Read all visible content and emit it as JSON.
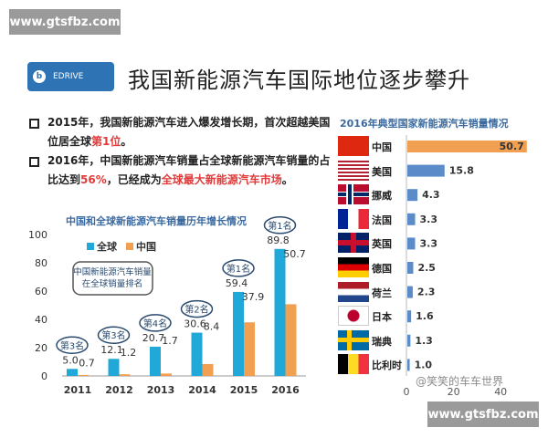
{
  "watermark_top": "www.gtsfbz.com",
  "watermark_bottom": "www.gtsfbz.com",
  "logo": {
    "text": "EDRIVE"
  },
  "title": "我国新能源汽车国际地位逐步攀升",
  "bullets": [
    {
      "pre": "2015年，我国新能源汽车进入爆发增长期，首次超越美国位居全球",
      "hl": "第1位",
      "post": "。"
    },
    {
      "pre": "2016年，中国新能源汽车销量占全球新能源汽车销量的占比达到",
      "hl": "56%",
      "mid": "，已经成为",
      "hl2": "全球最大新能源汽车市场",
      "post": "。"
    }
  ],
  "social_watermark": "@笑笑的车车世界",
  "chart_data": [
    {
      "type": "bar",
      "title": "中国和全球新能源汽车销量历年增长情况",
      "categories": [
        "2011",
        "2012",
        "2013",
        "2014",
        "2015",
        "2016"
      ],
      "series": [
        {
          "name": "全球",
          "values": [
            5.0,
            12.1,
            20.7,
            30.6,
            59.4,
            89.8
          ],
          "color": "#1fa8d8"
        },
        {
          "name": "中国",
          "values": [
            0.7,
            1.2,
            1.7,
            8.4,
            37.9,
            50.7
          ],
          "color": "#f0a050"
        }
      ],
      "rank_labels": [
        "第3名",
        "第3名",
        "第4名",
        "第2名",
        "第1名",
        "第1名"
      ],
      "annotation": "中国新能源汽车销量\n在全球销量排名",
      "annotation_lines": [
        "中国新能源汽车销量",
        "在全球销量排名"
      ],
      "yticks": [
        "0",
        "20",
        "40",
        "60",
        "80",
        "100"
      ],
      "ylim": [
        0,
        100
      ],
      "legend": "top-left"
    },
    {
      "type": "bar",
      "orientation": "horizontal",
      "title": "2016年典型国家新能源汽车销量情况",
      "categories": [
        "中国",
        "美国",
        "挪威",
        "法国",
        "英国",
        "德国",
        "荷兰",
        "日本",
        "瑞典",
        "比利时"
      ],
      "values": [
        50.7,
        15.8,
        4.3,
        3.3,
        3.3,
        2.5,
        2.3,
        1.6,
        1.3,
        1.0
      ],
      "value_labels": [
        "50.7",
        "15.8",
        "4.3",
        "3.3",
        "3.3",
        "2.5",
        "2.3",
        "1.6",
        "1.3",
        "1.0"
      ],
      "colors": {
        "highlight": "#f0a050",
        "default": "#5b8bc8"
      },
      "xticks": [
        "0",
        "20",
        "40"
      ],
      "xlim": [
        0,
        50
      ]
    }
  ]
}
